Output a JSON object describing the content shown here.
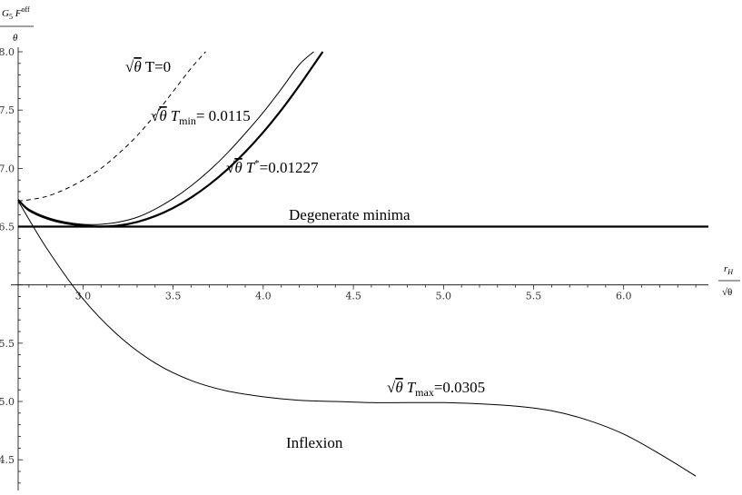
{
  "chart_data": {
    "type": "line",
    "ylabel": {
      "num_main": "G",
      "num_sub": "5",
      "num_main2": "F",
      "num_sup": "off",
      "den": "θ"
    },
    "xlabel": {
      "num_main": "r",
      "num_sub": "H",
      "den": "√θ"
    },
    "xlim": [
      2.64,
      6.47
    ],
    "ylim": [
      4.26,
      8.0
    ],
    "x_axis_crossing_y": 6.0,
    "xticks": [
      3.0,
      3.5,
      4.0,
      4.5,
      5.0,
      5.5,
      6.0
    ],
    "xtick_labels": [
      "3.0",
      "3.5",
      "4.0",
      "4.5",
      "5.0",
      "5.5",
      "6.0"
    ],
    "yticks": [
      4.5,
      5.0,
      5.5,
      6.5,
      7.0,
      7.5,
      8.0
    ],
    "ytick_labels": [
      "4.5",
      "5.0",
      "5.5",
      "6.5",
      "7.0",
      "7.5",
      "8.0"
    ],
    "series": [
      {
        "style": "dashed",
        "x": [
          2.64,
          2.7,
          2.8,
          2.9,
          3.0,
          3.1,
          3.2,
          3.3,
          3.4,
          3.5,
          3.6,
          3.68
        ],
        "y": [
          6.72,
          6.73,
          6.76,
          6.82,
          6.9,
          7.0,
          7.13,
          7.28,
          7.46,
          7.66,
          7.86,
          8.0
        ]
      },
      {
        "style": "thin",
        "x": [
          2.64,
          2.7,
          2.8,
          2.9,
          3.0,
          3.1,
          3.2,
          3.3,
          3.4,
          3.5,
          3.6,
          3.7,
          3.8,
          3.9,
          4.0,
          4.1,
          4.2,
          4.28
        ],
        "y": [
          6.73,
          6.65,
          6.58,
          6.54,
          6.52,
          6.52,
          6.54,
          6.58,
          6.65,
          6.74,
          6.85,
          6.98,
          7.13,
          7.3,
          7.48,
          7.68,
          7.89,
          8.0
        ]
      },
      {
        "style": "thick",
        "x": [
          2.64,
          2.7,
          2.8,
          2.9,
          3.0,
          3.1,
          3.2,
          3.3,
          3.4,
          3.5,
          3.6,
          3.7,
          3.8,
          3.9,
          4.0,
          4.1,
          4.2,
          4.33
        ],
        "y": [
          6.73,
          6.64,
          6.57,
          6.53,
          6.51,
          6.5,
          6.51,
          6.54,
          6.59,
          6.66,
          6.75,
          6.86,
          6.99,
          7.14,
          7.31,
          7.5,
          7.71,
          8.0
        ]
      },
      {
        "style": "thick-flat",
        "x": [
          2.64,
          6.47
        ],
        "y": [
          6.5,
          6.5
        ]
      },
      {
        "style": "thin",
        "x": [
          2.64,
          2.8,
          3.0,
          3.2,
          3.4,
          3.6,
          3.8,
          4.0,
          4.2,
          4.4,
          4.6,
          4.8,
          5.0,
          5.2,
          5.4,
          5.6,
          5.8,
          6.0,
          6.2,
          6.4
        ],
        "y": [
          6.72,
          6.31,
          5.88,
          5.56,
          5.33,
          5.18,
          5.09,
          5.04,
          5.01,
          5.0,
          4.99,
          4.99,
          4.99,
          4.98,
          4.96,
          4.92,
          4.84,
          4.72,
          4.55,
          4.36
        ]
      }
    ],
    "annotations": [
      {
        "id": "a1",
        "sqrt": "√",
        "theta": "θ",
        "rest": "T=0",
        "sub": "",
        "sup": "",
        "value": ""
      },
      {
        "id": "a2",
        "sqrt": "√",
        "theta": "θ",
        "rest": "T",
        "sub": "min",
        "sup": "",
        "value": "= 0.0115"
      },
      {
        "id": "a3",
        "sqrt": "√",
        "theta": "θ",
        "rest": "T",
        "sub": "",
        "sup": "*",
        "value": "=0.01227"
      },
      {
        "id": "a4",
        "text": "Degenerate minima"
      },
      {
        "id": "a5",
        "sqrt": "√",
        "theta": "θ",
        "rest": "T",
        "sub": "max",
        "sup": "",
        "value": "=0.0305"
      },
      {
        "id": "a6",
        "text": "Inflexion"
      }
    ],
    "grid": false
  }
}
